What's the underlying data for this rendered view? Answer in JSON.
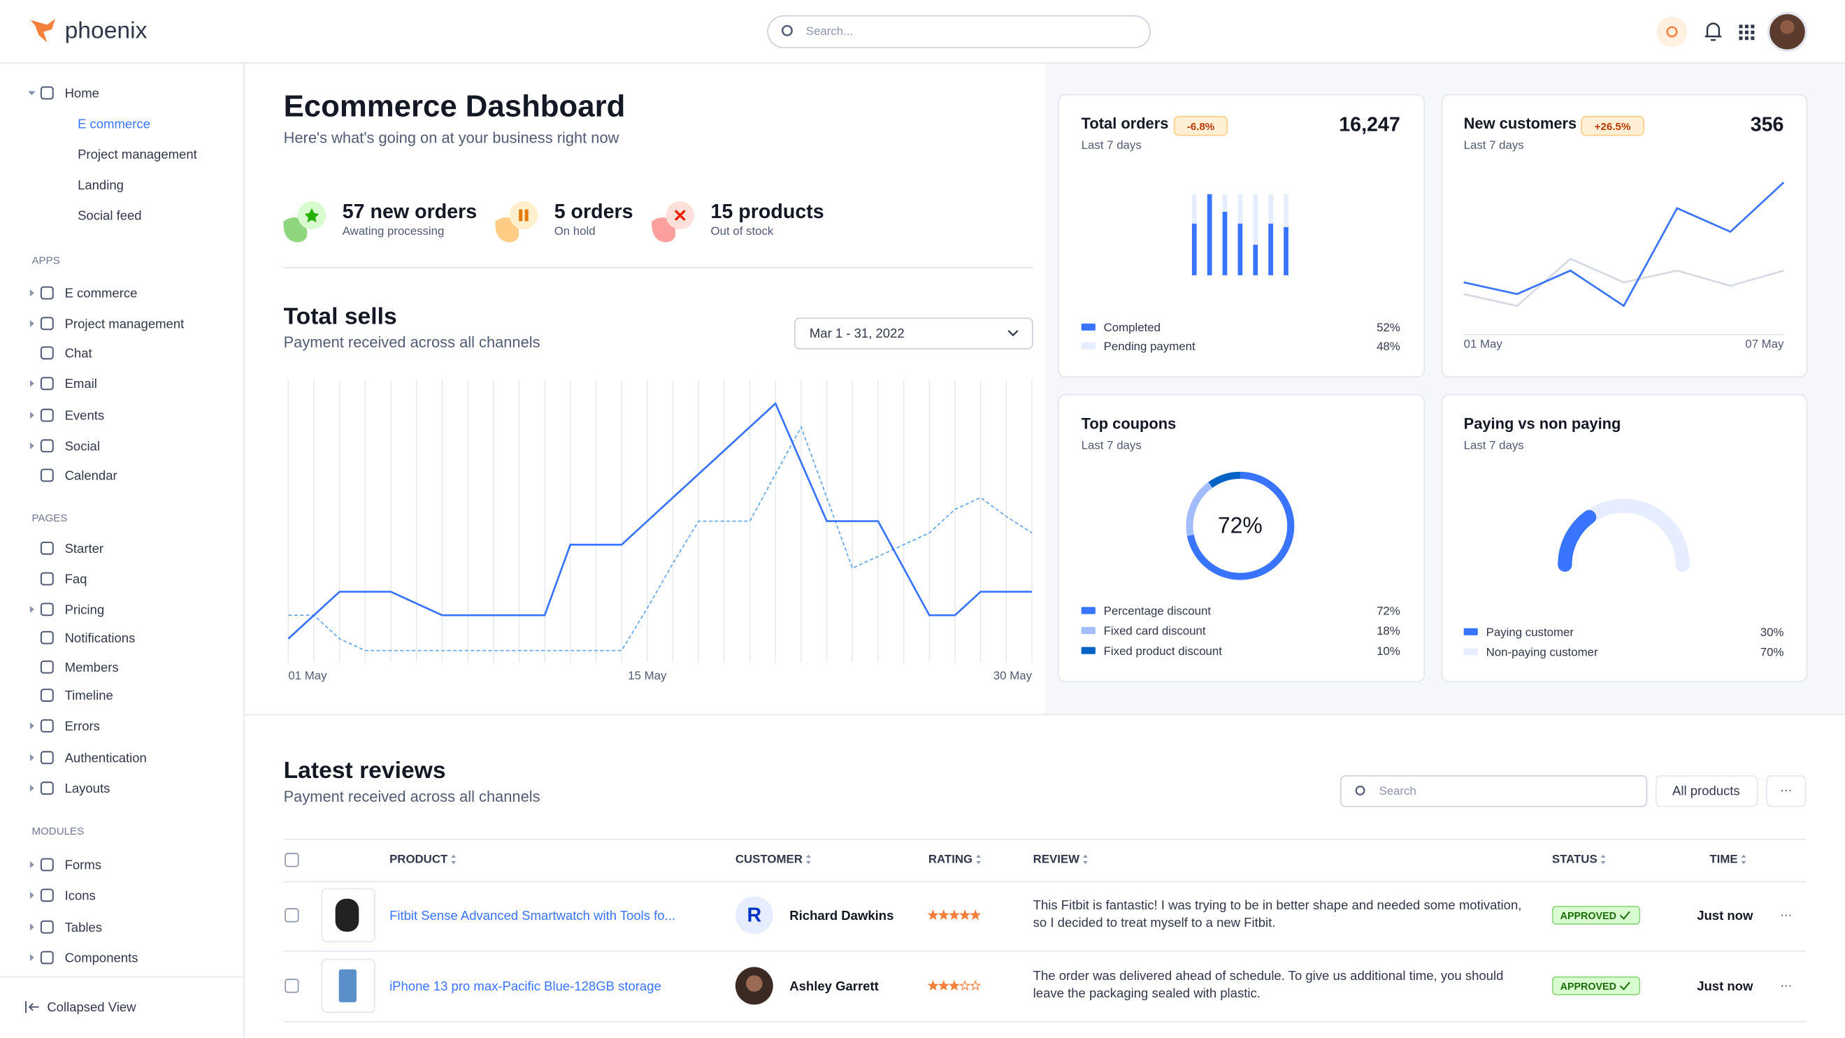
{
  "header": {
    "logo": "phoenix",
    "search_placeholder": "Search..."
  },
  "sidebar": {
    "home": {
      "label": "Home",
      "children": [
        "E commerce",
        "Project management",
        "Landing",
        "Social feed"
      ]
    },
    "sections": [
      {
        "title": "APPS",
        "items": [
          "E commerce",
          "Project management",
          "Chat",
          "Email",
          "Events",
          "Social",
          "Calendar"
        ]
      },
      {
        "title": "PAGES",
        "items": [
          "Starter",
          "Faq",
          "Pricing",
          "Notifications",
          "Members",
          "Timeline",
          "Errors",
          "Authentication",
          "Layouts"
        ]
      },
      {
        "title": "MODULES",
        "items": [
          "Forms",
          "Icons",
          "Tables",
          "Components"
        ]
      }
    ],
    "collapse": "Collapsed View"
  },
  "dashboard": {
    "title": "Ecommerce Dashboard",
    "subtitle": "Here's what's going on at your business right now",
    "stats": [
      {
        "value": "57 new orders",
        "label": "Awating processing"
      },
      {
        "value": "5 orders",
        "label": "On hold"
      },
      {
        "value": "15 products",
        "label": "Out of stock"
      }
    ]
  },
  "total_sells": {
    "type": "line",
    "title": "Total sells",
    "subtitle": "Payment received across all channels",
    "date_range": "Mar 1 - 31, 2022",
    "categories": [
      "01 May",
      null,
      null,
      null,
      null,
      null,
      null,
      null,
      null,
      null,
      null,
      null,
      null,
      null,
      "15 May",
      null,
      null,
      null,
      null,
      null,
      null,
      null,
      null,
      null,
      null,
      null,
      null,
      null,
      null,
      "30 May"
    ],
    "ylim": [
      0,
      120
    ],
    "series": [
      {
        "color": "#3874ff",
        "dashed": false,
        "values": [
          10,
          20,
          30,
          30,
          30,
          25,
          20,
          20,
          20,
          20,
          20,
          50,
          50,
          50,
          60,
          70,
          80,
          90,
          100,
          110,
          85,
          60,
          60,
          60,
          40,
          20,
          20,
          30,
          30,
          30
        ]
      },
      {
        "color": "#60a5e8",
        "dashed": true,
        "values": [
          20,
          20,
          10,
          5,
          5,
          5,
          5,
          5,
          5,
          5,
          5,
          5,
          5,
          5,
          23,
          42,
          60,
          60,
          60,
          80,
          100,
          70,
          40,
          45,
          50,
          55,
          65,
          70,
          62,
          55
        ]
      }
    ]
  },
  "total_orders": {
    "type": "bar",
    "title": "Total orders",
    "badge": "-6.8%",
    "subtitle": "Last 7 days",
    "total": "16,247",
    "categories": [
      null,
      null,
      null,
      null,
      null,
      null,
      null
    ],
    "ylim": [
      0,
      69
    ],
    "stacked": true,
    "series": [
      {
        "name": "Completed",
        "color": "#3874ff",
        "share": "52%",
        "values": [
          44,
          69,
          54,
          44,
          26,
          44,
          41
        ]
      },
      {
        "name": "Pending payment",
        "color": "#e5edff",
        "share": "48%",
        "values": [
          25,
          0,
          15,
          25,
          43,
          25,
          28
        ]
      }
    ]
  },
  "new_customers": {
    "type": "line",
    "title": "New customers",
    "badge": "+26.5%",
    "subtitle": "Last 7 days",
    "total": "356",
    "categories": [
      "01 May",
      null,
      null,
      null,
      null,
      null,
      "07 May"
    ],
    "ylim": [
      0,
      140
    ],
    "series": [
      {
        "color": "#d6dbe3",
        "values": [
          35,
          25,
          65,
          45,
          55,
          42,
          55
        ]
      },
      {
        "color": "#3874ff",
        "values": [
          45,
          35,
          55,
          25,
          108,
          88,
          130
        ]
      }
    ]
  },
  "top_coupons": {
    "type": "donut",
    "title": "Top coupons",
    "subtitle": "Last 7 days",
    "categories": [
      "Percentage discount",
      "Fixed card discount",
      "Fixed product discount"
    ],
    "values": [
      72,
      18,
      10
    ],
    "value_labels": [
      "72%",
      "18%",
      "10%"
    ],
    "colors": [
      "#3874ff",
      "#a2bdff",
      "#0062c4"
    ]
  },
  "paying": {
    "type": "gauge",
    "title": "Paying vs non paying",
    "subtitle": "Last 7 days",
    "categories": [
      "Paying customer",
      "Non-paying customer"
    ],
    "values": [
      30,
      70
    ],
    "value_labels": [
      "30%",
      "70%"
    ],
    "colors": [
      "#3874ff",
      "#e5edff"
    ]
  },
  "reviews": {
    "title": "Latest reviews",
    "subtitle": "Payment received across all channels",
    "search_placeholder": "Search",
    "filter": "All products",
    "more": "···",
    "columns": [
      "PRODUCT",
      "CUSTOMER",
      "RATING",
      "REVIEW",
      "STATUS",
      "TIME"
    ],
    "rows": [
      {
        "product": "Fitbit Sense Advanced Smartwatch with Tools fo...",
        "avatar": "R",
        "customer": "Richard Dawkins",
        "rating": 5,
        "review": "This Fitbit is fantastic! I was trying to be in better shape and needed some motivation, so I decided to treat myself to a new Fitbit.",
        "status": "APPROVED",
        "time": "Just now"
      },
      {
        "product": "iPhone 13 pro max-Pacific Blue-128GB storage",
        "customer": "Ashley Garrett",
        "rating": 3,
        "review": "The order was delivered ahead of schedule. To give us additional time, you should leave the packaging sealed with plastic.",
        "status": "APPROVED",
        "time": "Just now"
      }
    ]
  }
}
